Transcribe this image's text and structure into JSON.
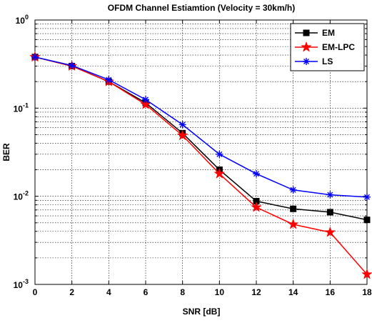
{
  "chart_data": {
    "type": "line",
    "title": "OFDM Channel Estiamtion (Velocity = 30km/h)",
    "xlabel": "SNR [dB]",
    "ylabel": "BER",
    "x": [
      0,
      2,
      4,
      6,
      8,
      10,
      12,
      14,
      16,
      18
    ],
    "xlim": [
      0,
      18
    ],
    "xticks": [
      "0",
      "2",
      "4",
      "6",
      "8",
      "10",
      "12",
      "14",
      "16",
      "18"
    ],
    "ylim": [
      0.001,
      1
    ],
    "yscale": "log",
    "yticks": [
      {
        "value": 0.001,
        "base": "10",
        "exp": "-3"
      },
      {
        "value": 0.01,
        "base": "10",
        "exp": "-2"
      },
      {
        "value": 0.1,
        "base": "10",
        "exp": "-1"
      },
      {
        "value": 1,
        "base": "10",
        "exp": "0"
      }
    ],
    "grid": true,
    "legend_position": "top-right",
    "series": [
      {
        "name": "EM",
        "color": "#000000",
        "marker": "square",
        "values": [
          0.38,
          0.3,
          0.2,
          0.115,
          0.052,
          0.02,
          0.0088,
          0.0072,
          0.0066,
          0.0054
        ]
      },
      {
        "name": "EM-LPC",
        "color": "#ff0000",
        "marker": "star",
        "values": [
          0.38,
          0.3,
          0.2,
          0.11,
          0.049,
          0.018,
          0.0075,
          0.0048,
          0.0039,
          0.0013
        ]
      },
      {
        "name": "LS",
        "color": "#0000ff",
        "marker": "asterisk",
        "values": [
          0.38,
          0.305,
          0.21,
          0.125,
          0.065,
          0.03,
          0.018,
          0.0118,
          0.0104,
          0.0098
        ]
      }
    ]
  }
}
